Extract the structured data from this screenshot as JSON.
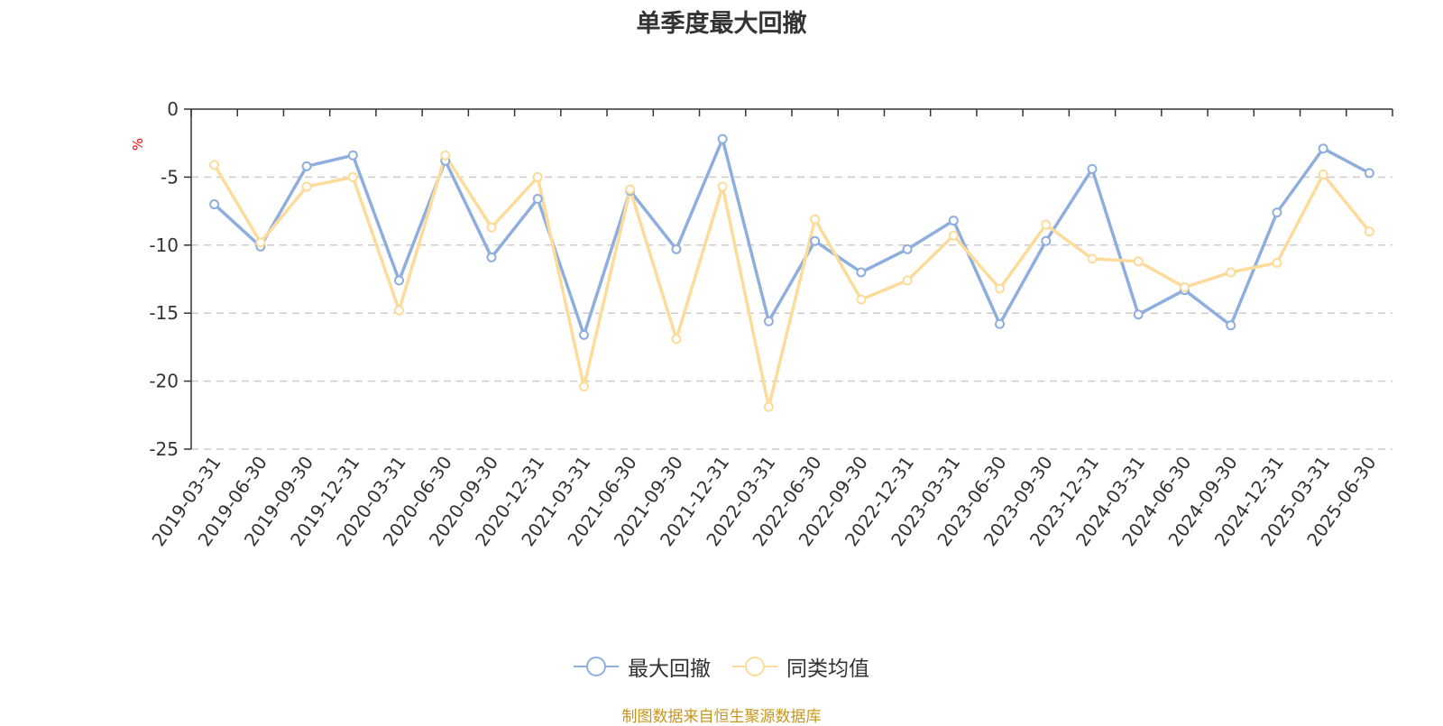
{
  "chart_data": {
    "type": "line",
    "title": "单季度最大回撤",
    "ylabel": "%",
    "xlabel": "",
    "ylim": [
      -25,
      0
    ],
    "yticks": [
      0,
      -5,
      -10,
      -15,
      -20,
      -25
    ],
    "grid": true,
    "legend_position": "bottom",
    "categories": [
      "2019-03-31",
      "2019-06-30",
      "2019-09-30",
      "2019-12-31",
      "2020-03-31",
      "2020-06-30",
      "2020-09-30",
      "2020-12-31",
      "2021-03-31",
      "2021-06-30",
      "2021-09-30",
      "2021-12-31",
      "2022-03-31",
      "2022-06-30",
      "2022-09-30",
      "2022-12-31",
      "2023-03-31",
      "2023-06-30",
      "2023-09-30",
      "2023-12-31",
      "2024-03-31",
      "2024-06-30",
      "2024-09-30",
      "2024-12-31",
      "2025-03-31",
      "2025-06-30"
    ],
    "series": [
      {
        "name": "最大回撤",
        "color": "#8eaedd",
        "values": [
          -7.0,
          -10.1,
          -4.2,
          -3.4,
          -12.6,
          -3.8,
          -10.9,
          -6.6,
          -16.6,
          -6.0,
          -10.3,
          -2.2,
          -15.6,
          -9.7,
          -12.0,
          -10.3,
          -8.2,
          -15.8,
          -9.7,
          -4.4,
          -15.1,
          -13.3,
          -15.9,
          -7.6,
          -2.9,
          -4.7
        ]
      },
      {
        "name": "同类均值",
        "color": "#fddb9a",
        "values": [
          -4.1,
          -9.8,
          -5.7,
          -5.0,
          -14.8,
          -3.4,
          -8.7,
          -5.0,
          -20.4,
          -5.9,
          -16.9,
          -5.7,
          -21.9,
          -8.1,
          -14.0,
          -12.6,
          -9.3,
          -13.2,
          -8.5,
          -11.0,
          -11.2,
          -13.1,
          -12.0,
          -11.3,
          -4.8,
          -9.0
        ]
      }
    ]
  },
  "source_note": "制图数据来自恒生聚源数据库"
}
